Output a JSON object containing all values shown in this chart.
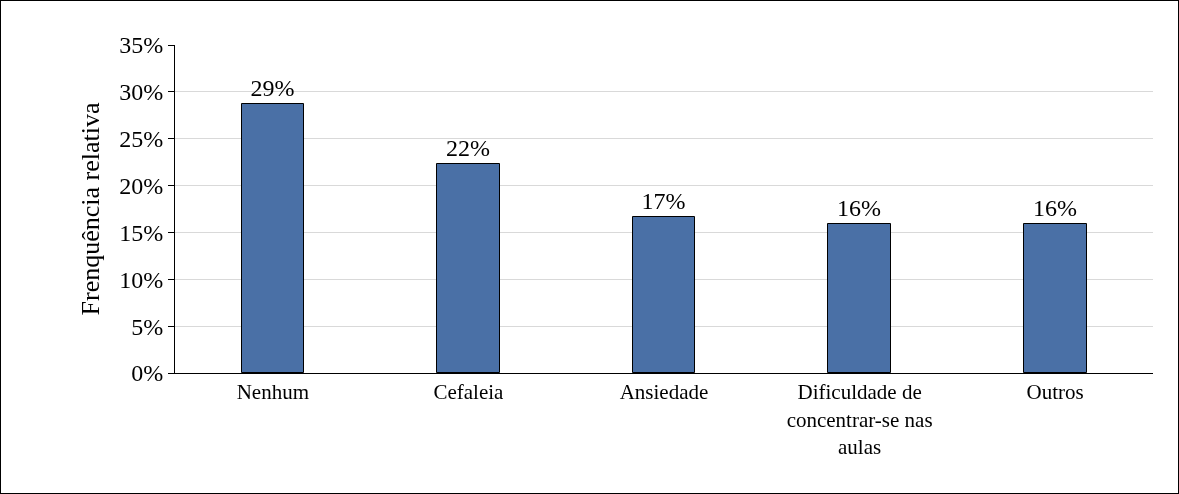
{
  "chart_data": {
    "type": "bar",
    "ylabel": "Frenquência relativa",
    "categories": [
      "Nenhum",
      "Cefaleia",
      "Ansiedade",
      "Dificuldade de concentrar-se nas aulas",
      "Outros"
    ],
    "values": [
      28.7,
      22.3,
      16.6,
      15.9,
      15.9
    ],
    "value_labels": [
      "29%",
      "22%",
      "17%",
      "16%",
      "16%"
    ],
    "color": "#4a70a6",
    "ylim": [
      0,
      35
    ],
    "yticks": [
      {
        "value": 0,
        "label": "0%"
      },
      {
        "value": 5,
        "label": "5%"
      },
      {
        "value": 10,
        "label": "10%"
      },
      {
        "value": 15,
        "label": "15%"
      },
      {
        "value": 20,
        "label": "20%"
      },
      {
        "value": 25,
        "label": "25%"
      },
      {
        "value": 30,
        "label": "30%"
      },
      {
        "value": 35,
        "label": "35%"
      }
    ],
    "grid": "y"
  }
}
